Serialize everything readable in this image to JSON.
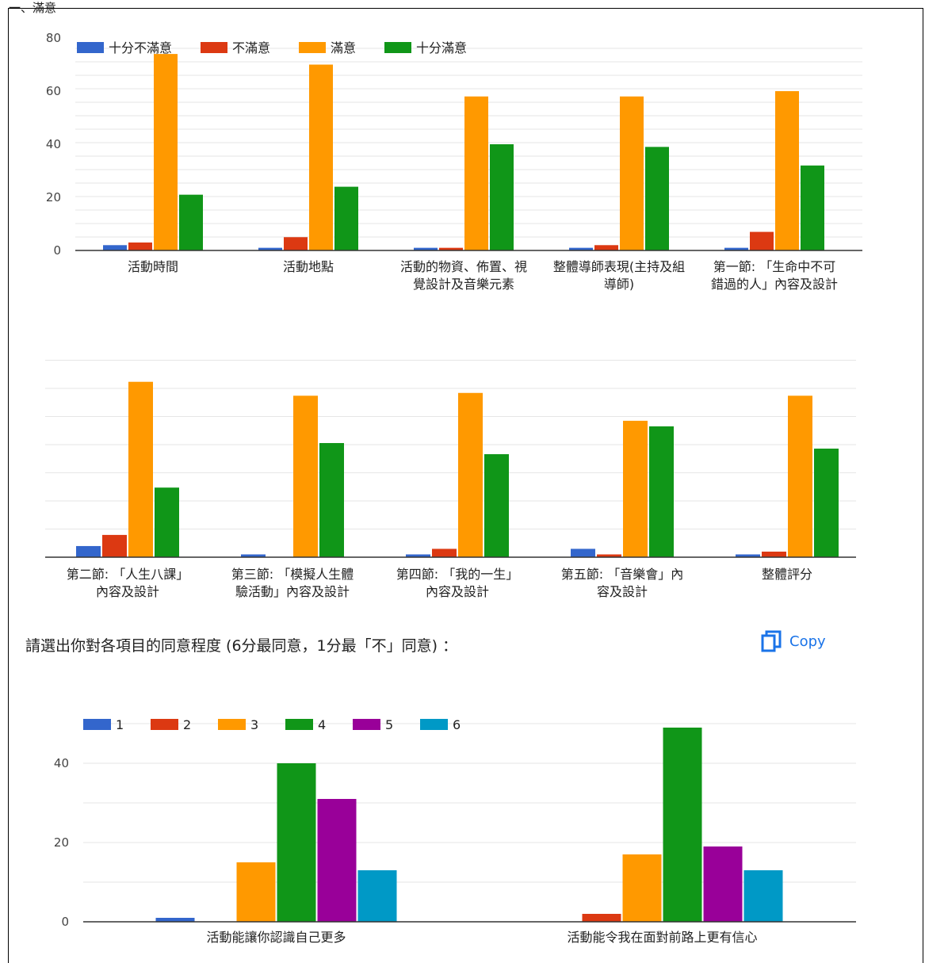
{
  "top_label": "一、滿意",
  "question": "請選出你對各項目的同意程度 (6分最同意，1分最「不」同意) ：",
  "copy_label": "Copy",
  "chart_data": [
    {
      "type": "bar",
      "title": "",
      "xlabel": "",
      "ylabel": "",
      "ylim": [
        0,
        80
      ],
      "yticks": [
        0,
        20,
        40,
        60,
        80
      ],
      "legend": "top-left",
      "grid": true,
      "categories": [
        [
          "活動時間"
        ],
        [
          "活動地點"
        ],
        [
          "活動的物資、佈置、視",
          "覺設計及音樂元素"
        ],
        [
          "整體導師表現(主持及組",
          "導師)"
        ],
        [
          "第一節: 「生命中不可",
          "錯過的人」內容及設計"
        ]
      ],
      "series": [
        {
          "name": "十分不滿意",
          "color": "#3366cc",
          "values": [
            2,
            1,
            1,
            1,
            1
          ]
        },
        {
          "name": "不滿意",
          "color": "#dc3912",
          "values": [
            3,
            5,
            1,
            2,
            7
          ]
        },
        {
          "name": "滿意",
          "color": "#ff9900",
          "values": [
            74,
            70,
            58,
            58,
            60
          ]
        },
        {
          "name": "十分滿意",
          "color": "#109618",
          "values": [
            21,
            24,
            40,
            39,
            32
          ]
        }
      ]
    },
    {
      "type": "bar",
      "title": "",
      "xlabel": "",
      "ylabel": "",
      "ylim": [
        0,
        80
      ],
      "yticks": [],
      "legend": "none",
      "grid": true,
      "categories": [
        [
          "第二節: 「人生八課」",
          "內容及設計"
        ],
        [
          "第三節: 「模擬人生體",
          "驗活動」內容及設計"
        ],
        [
          "第四節: 「我的一生」",
          "內容及設計"
        ],
        [
          "第五節: 「音樂會」內",
          "容及設計"
        ],
        [
          "整體評分"
        ]
      ],
      "series": [
        {
          "name": "十分不滿意",
          "color": "#3366cc",
          "values": [
            4,
            1,
            1,
            3,
            1
          ]
        },
        {
          "name": "不滿意",
          "color": "#dc3912",
          "values": [
            8,
            0,
            3,
            1,
            2
          ]
        },
        {
          "name": "滿意",
          "color": "#ff9900",
          "values": [
            63,
            58,
            59,
            49,
            58
          ]
        },
        {
          "name": "十分滿意",
          "color": "#109618",
          "values": [
            25,
            41,
            37,
            47,
            39
          ]
        }
      ]
    },
    {
      "type": "bar",
      "title": "",
      "xlabel": "",
      "ylabel": "",
      "ylim": [
        0,
        50
      ],
      "yticks": [
        0,
        20,
        40
      ],
      "legend": "top-left",
      "grid": true,
      "categories": [
        [
          "活動能讓你認識自己更多"
        ],
        [
          "活動能令我在面對前路上更有信心"
        ]
      ],
      "series": [
        {
          "name": "1",
          "color": "#3366cc",
          "values": [
            1,
            0
          ]
        },
        {
          "name": "2",
          "color": "#dc3912",
          "values": [
            0,
            2
          ]
        },
        {
          "name": "3",
          "color": "#ff9900",
          "values": [
            15,
            17
          ]
        },
        {
          "name": "4",
          "color": "#109618",
          "values": [
            40,
            49
          ]
        },
        {
          "name": "5",
          "color": "#990099",
          "values": [
            31,
            19
          ]
        },
        {
          "name": "6",
          "color": "#0099c6",
          "values": [
            13,
            13
          ]
        }
      ]
    }
  ]
}
